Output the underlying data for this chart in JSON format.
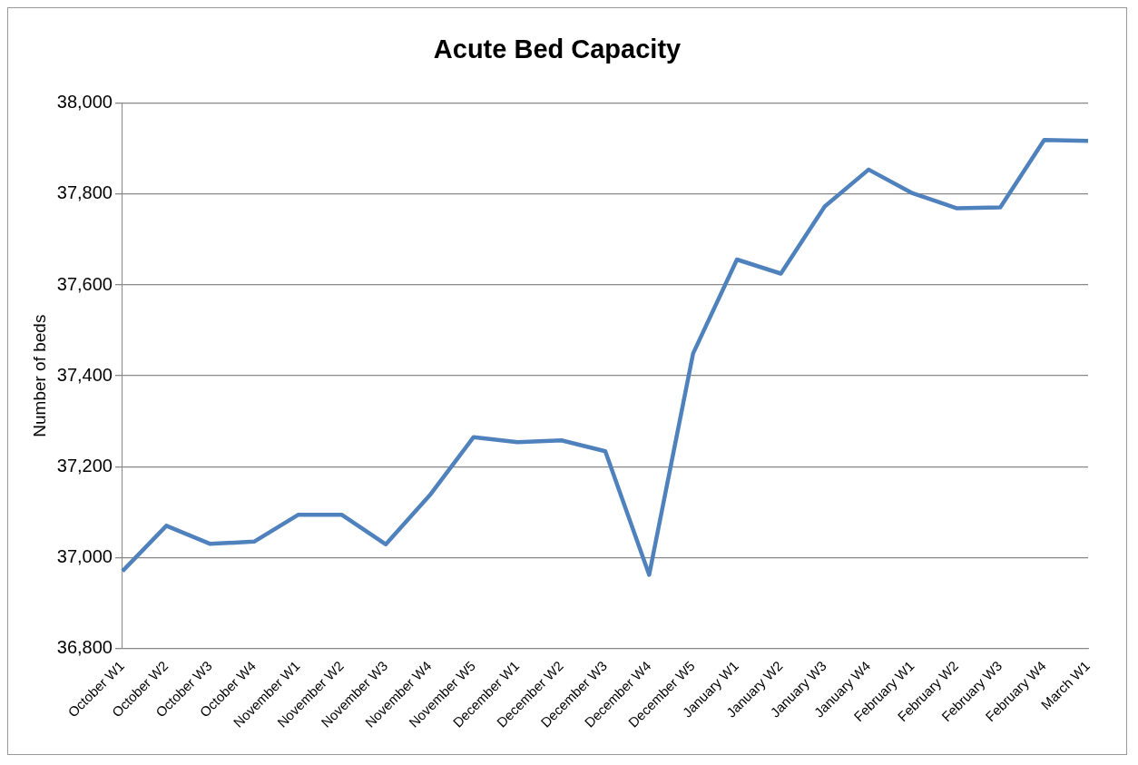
{
  "chart_data": {
    "type": "line",
    "title": "Acute Bed Capacity",
    "ylabel": "Number of beds",
    "categories": [
      "October W1",
      "October W2",
      "October W3",
      "October W4",
      "November W1",
      "November W2",
      "November W3",
      "November W4",
      "November W5",
      "December W1",
      "December W2",
      "December W3",
      "December W4",
      "December W5",
      "January W1",
      "January W2",
      "January W3",
      "January W4",
      "February W1",
      "February W2",
      "February W3",
      "February W4",
      "March W1"
    ],
    "series": [
      {
        "color": "#4f81bd",
        "values": [
          36970,
          37070,
          37030,
          37035,
          37094,
          37094,
          37029,
          37137,
          37265,
          37254,
          37258,
          37234,
          36962,
          37449,
          37656,
          37625,
          37773,
          37854,
          37802,
          37769,
          37771,
          37919,
          37917
        ]
      }
    ],
    "ylim": [
      36800,
      38000
    ],
    "yticks": [
      {
        "value": 36800,
        "label": "36,800"
      },
      {
        "value": 37000,
        "label": "37,000"
      },
      {
        "value": 37200,
        "label": "37,200"
      },
      {
        "value": 37400,
        "label": "37,400"
      },
      {
        "value": 37600,
        "label": "37,600"
      },
      {
        "value": 37800,
        "label": "37,800"
      },
      {
        "value": 38000,
        "label": "38,000"
      }
    ],
    "grid": "y",
    "legend": false,
    "marker": "none",
    "line_style": "solid"
  }
}
